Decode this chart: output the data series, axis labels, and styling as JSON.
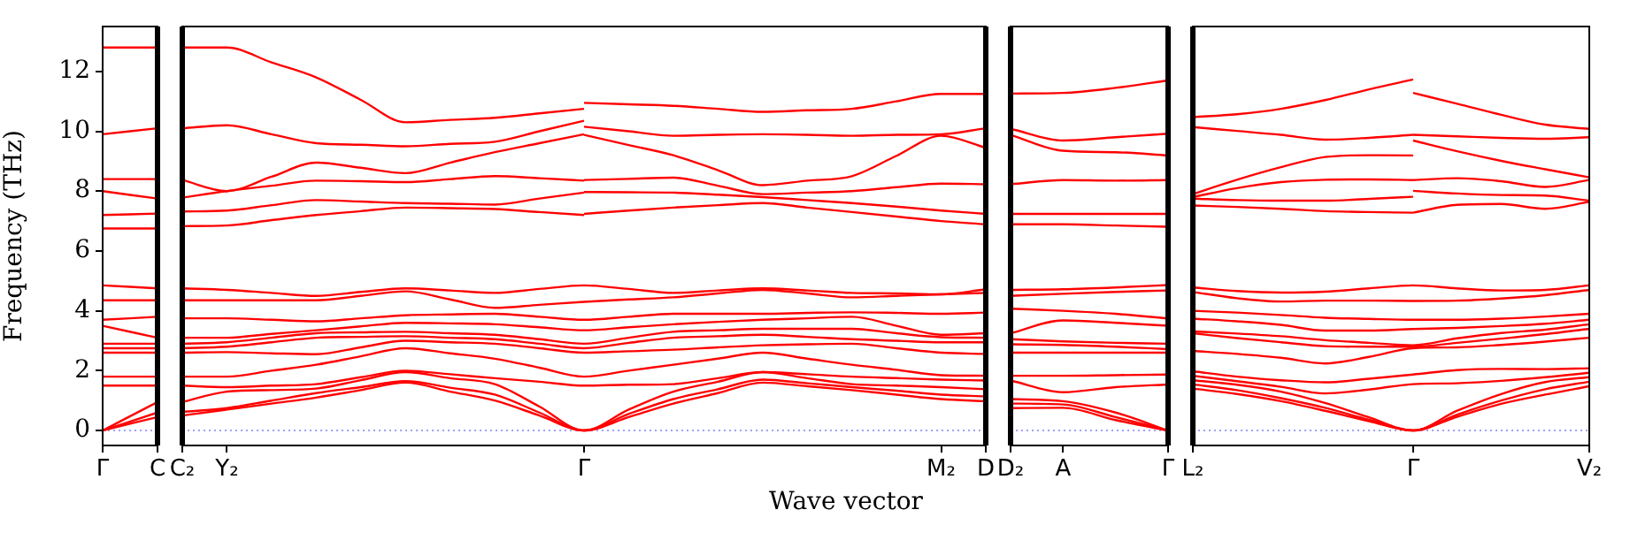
{
  "chart_data": [
    {
      "type": "line",
      "ylabel": "Frequency (THz)",
      "color": "#ff0000",
      "ylim": [
        -0.5,
        13.5
      ],
      "yticks": [
        0,
        2,
        4,
        6,
        8,
        10,
        12
      ],
      "categories": [
        "Γ",
        "C"
      ],
      "ref_lines": [
        {
          "axis": "y",
          "value": 0,
          "color": "#8080ff",
          "line_style": "dotted"
        }
      ],
      "series": [
        {
          "values": [
            12.8,
            12.8
          ]
        },
        {
          "values": [
            9.9,
            10.1
          ]
        },
        {
          "values": [
            8.4,
            8.4
          ]
        },
        {
          "values": [
            8.0,
            7.75
          ]
        },
        {
          "values": [
            7.2,
            7.25
          ]
        },
        {
          "values": [
            6.75,
            6.75
          ]
        },
        {
          "values": [
            4.85,
            4.75
          ]
        },
        {
          "values": [
            4.35,
            4.35
          ]
        },
        {
          "values": [
            3.7,
            3.8
          ]
        },
        {
          "values": [
            3.5,
            3.1
          ]
        },
        {
          "values": [
            2.9,
            2.9
          ]
        },
        {
          "values": [
            2.75,
            2.75
          ]
        },
        {
          "values": [
            2.6,
            2.6
          ]
        },
        {
          "values": [
            1.8,
            1.8
          ]
        },
        {
          "values": [
            1.5,
            1.5
          ]
        },
        {
          "values": [
            0,
            0.95
          ]
        },
        {
          "values": [
            0,
            0.6
          ]
        },
        {
          "values": [
            0,
            0.45
          ]
        }
      ]
    },
    {
      "type": "line",
      "xlabel": "Wave vector",
      "color": "#ff0000",
      "tick_labels": "x",
      "ylim": [
        -0.5,
        13.5
      ],
      "categories": [
        "C₂",
        "Y₂",
        null,
        null,
        null,
        null,
        null,
        null,
        null,
        "Γ",
        null,
        null,
        null,
        null,
        null,
        null,
        null,
        "M₂",
        "D"
      ],
      "ref_lines": [
        {
          "axis": "y",
          "value": 0,
          "color": "#8080ff",
          "line_style": "dotted"
        }
      ],
      "series": [
        {
          "values": [
            12.8,
            12.8,
            12.3,
            11.8,
            11.05,
            10.3,
            10.38,
            10.45,
            10.6,
            10.75,
            null,
            null,
            null,
            null,
            null,
            null,
            null,
            null,
            null
          ]
        },
        {
          "values": [
            10.1,
            10.2,
            9.9,
            9.6,
            9.55,
            9.5,
            9.58,
            9.65,
            10.0,
            10.35,
            null,
            null,
            null,
            null,
            null,
            null,
            null,
            null,
            null
          ]
        },
        {
          "values": [
            8.37,
            8.0,
            8.48,
            8.95,
            8.78,
            8.6,
            8.95,
            9.3,
            9.6,
            9.9,
            null,
            null,
            null,
            null,
            null,
            null,
            null,
            null,
            null
          ]
        },
        {
          "values": [
            7.78,
            8.0,
            8.18,
            8.35,
            8.33,
            8.3,
            8.4,
            8.5,
            8.43,
            8.35,
            null,
            null,
            null,
            null,
            null,
            null,
            null,
            null,
            null
          ]
        },
        {
          "values": [
            7.32,
            7.35,
            7.53,
            7.7,
            7.65,
            7.6,
            7.58,
            7.55,
            7.75,
            7.95,
            null,
            null,
            null,
            null,
            null,
            null,
            null,
            null,
            null
          ]
        },
        {
          "values": [
            6.83,
            6.85,
            7.03,
            7.2,
            7.33,
            7.45,
            7.43,
            7.4,
            7.3,
            7.2,
            null,
            null,
            null,
            null,
            null,
            null,
            null,
            null,
            null
          ]
        },
        {
          "values": [
            null,
            null,
            null,
            null,
            null,
            null,
            null,
            null,
            null,
            10.95,
            10.9,
            10.85,
            10.75,
            10.65,
            10.7,
            10.75,
            11.0,
            11.25,
            11.25
          ]
        },
        {
          "values": [
            null,
            null,
            null,
            null,
            null,
            null,
            null,
            null,
            null,
            10.15,
            10.0,
            9.85,
            9.88,
            9.9,
            9.88,
            9.85,
            9.88,
            9.9,
            10.1
          ]
        },
        {
          "values": [
            null,
            null,
            null,
            null,
            null,
            null,
            null,
            null,
            null,
            9.88,
            9.54,
            9.2,
            8.7,
            8.2,
            8.35,
            8.5,
            9.18,
            9.85,
            9.45
          ]
        },
        {
          "values": [
            null,
            null,
            null,
            null,
            null,
            null,
            null,
            null,
            null,
            8.37,
            8.41,
            8.45,
            8.18,
            7.9,
            7.95,
            8.0,
            8.13,
            8.25,
            8.23
          ]
        },
        {
          "values": [
            null,
            null,
            null,
            null,
            null,
            null,
            null,
            null,
            null,
            7.97,
            7.96,
            7.95,
            7.88,
            7.8,
            7.7,
            7.6,
            7.48,
            7.35,
            7.24
          ]
        },
        {
          "values": [
            null,
            null,
            null,
            null,
            null,
            null,
            null,
            null,
            null,
            7.24,
            7.35,
            7.45,
            7.53,
            7.6,
            7.45,
            7.3,
            7.15,
            7.0,
            6.89
          ]
        },
        {
          "values": [
            4.75,
            4.7,
            4.6,
            4.5,
            4.63,
            4.75,
            4.68,
            4.6,
            4.73,
            4.85,
            4.73,
            4.6,
            4.68,
            4.75,
            4.68,
            4.6,
            4.58,
            4.55,
            4.72
          ]
        },
        {
          "values": [
            4.35,
            4.35,
            4.35,
            4.35,
            4.5,
            4.65,
            4.38,
            4.1,
            4.2,
            4.3,
            4.38,
            4.45,
            4.58,
            4.7,
            4.58,
            4.45,
            4.5,
            4.55,
            4.6
          ]
        },
        {
          "values": [
            3.75,
            3.75,
            3.7,
            3.65,
            3.75,
            3.85,
            3.88,
            3.9,
            3.8,
            3.7,
            3.8,
            3.9,
            3.9,
            3.9,
            3.93,
            3.95,
            3.93,
            3.9,
            3.94
          ]
        },
        {
          "values": [
            3.1,
            3.1,
            3.23,
            3.35,
            3.48,
            3.6,
            3.58,
            3.55,
            3.45,
            3.35,
            3.45,
            3.55,
            3.63,
            3.7,
            3.75,
            3.8,
            3.5,
            3.2,
            3.25
          ]
        },
        {
          "values": [
            2.9,
            2.95,
            3.1,
            3.25,
            3.28,
            3.3,
            3.25,
            3.2,
            3.05,
            2.9,
            3.1,
            3.3,
            3.35,
            3.4,
            3.4,
            3.4,
            3.25,
            3.12,
            3.1
          ]
        },
        {
          "values": [
            2.75,
            2.8,
            2.95,
            3.1,
            3.13,
            3.15,
            3.1,
            3.05,
            2.9,
            2.75,
            2.93,
            3.1,
            3.15,
            3.2,
            3.13,
            3.05,
            3.0,
            2.95,
            2.95
          ]
        },
        {
          "values": [
            2.6,
            2.62,
            2.58,
            2.55,
            2.78,
            3.0,
            2.95,
            2.9,
            2.75,
            2.6,
            2.65,
            2.7,
            2.78,
            2.85,
            2.88,
            2.9,
            2.75,
            2.6,
            2.56
          ]
        },
        {
          "values": [
            1.8,
            1.8,
            2.0,
            2.2,
            2.48,
            2.75,
            2.58,
            2.4,
            2.1,
            1.8,
            2.0,
            2.2,
            2.4,
            2.6,
            2.4,
            2.2,
            2.03,
            1.85,
            1.83
          ]
        },
        {
          "values": [
            1.5,
            1.45,
            1.5,
            1.55,
            1.78,
            2.0,
            1.88,
            1.75,
            1.63,
            1.5,
            1.53,
            1.55,
            1.75,
            1.95,
            1.88,
            1.8,
            1.75,
            1.7,
            1.67
          ]
        },
        {
          "values": [
            0.95,
            1.3,
            1.35,
            1.4,
            1.68,
            1.95,
            1.75,
            1.55,
            0.8,
            0,
            0.7,
            1.3,
            1.63,
            1.95,
            1.75,
            1.55,
            1.5,
            1.45,
            1.38
          ]
        },
        {
          "values": [
            0.62,
            0.75,
            1.0,
            1.25,
            1.45,
            1.65,
            1.43,
            1.2,
            0.6,
            0,
            0.55,
            1.05,
            1.38,
            1.7,
            1.58,
            1.45,
            1.33,
            1.2,
            1.14
          ]
        },
        {
          "values": [
            0.5,
            0.7,
            0.9,
            1.1,
            1.35,
            1.6,
            1.3,
            1.0,
            0.5,
            0,
            0.45,
            0.9,
            1.25,
            1.6,
            1.48,
            1.35,
            1.2,
            1.05,
            0.98
          ]
        }
      ]
    },
    {
      "type": "line",
      "color": "#ff0000",
      "tick_labels": "x",
      "ylim": [
        -0.5,
        13.5
      ],
      "categories": [
        "D₂",
        "A",
        null,
        "Γ"
      ],
      "ref_lines": [
        {
          "axis": "y",
          "value": 0,
          "color": "#8080ff",
          "line_style": "dotted"
        }
      ],
      "series": [
        {
          "values": [
            11.26,
            11.28,
            11.45,
            11.7
          ]
        },
        {
          "values": [
            10.08,
            9.69,
            9.8,
            9.92
          ]
        },
        {
          "values": [
            9.88,
            9.35,
            9.3,
            9.19
          ]
        },
        {
          "values": [
            8.23,
            8.37,
            8.35,
            8.37
          ]
        },
        {
          "values": [
            7.24,
            7.24,
            7.24,
            7.24
          ]
        },
        {
          "values": [
            6.89,
            6.89,
            6.85,
            6.81
          ]
        },
        {
          "values": [
            4.7,
            4.72,
            4.78,
            4.86
          ]
        },
        {
          "values": [
            4.5,
            4.57,
            4.63,
            4.68
          ]
        },
        {
          "values": [
            4.07,
            4.0,
            3.9,
            3.74
          ]
        },
        {
          "values": [
            3.25,
            3.68,
            3.6,
            3.5
          ]
        },
        {
          "values": [
            3.05,
            2.98,
            2.93,
            2.9
          ]
        },
        {
          "values": [
            2.88,
            2.86,
            2.8,
            2.72
          ]
        },
        {
          "values": [
            2.6,
            2.6,
            2.6,
            2.6
          ]
        },
        {
          "values": [
            1.83,
            1.83,
            1.85,
            1.87
          ]
        },
        {
          "values": [
            1.67,
            1.28,
            1.45,
            1.54
          ]
        },
        {
          "values": [
            1.05,
            0.98,
            0.6,
            0
          ]
        },
        {
          "values": [
            0.9,
            0.87,
            0.45,
            0
          ]
        },
        {
          "values": [
            0.75,
            0.76,
            0.35,
            0
          ]
        }
      ]
    },
    {
      "type": "line",
      "color": "#ff0000",
      "tick_labels": "x",
      "ylim": [
        -0.5,
        13.5
      ],
      "categories": [
        "L₂",
        null,
        null,
        null,
        null,
        "Γ",
        null,
        null,
        null,
        "V₂"
      ],
      "ref_lines": [
        {
          "axis": "y",
          "value": 0,
          "color": "#8080ff",
          "line_style": "dotted"
        }
      ],
      "series": [
        {
          "values": [
            10.47,
            10.57,
            10.75,
            11.04,
            11.4,
            11.73,
            null,
            null,
            null,
            null
          ]
        },
        {
          "values": [
            10.14,
            10.01,
            9.88,
            9.72,
            9.78,
            9.88,
            null,
            null,
            null,
            null
          ]
        },
        {
          "values": [
            7.9,
            8.38,
            8.8,
            9.14,
            9.2,
            9.19,
            null,
            null,
            null,
            null
          ]
        },
        {
          "values": [
            7.8,
            8.1,
            8.3,
            8.38,
            8.39,
            8.37,
            null,
            null,
            null,
            null
          ]
        },
        {
          "values": [
            7.75,
            7.7,
            7.68,
            7.68,
            7.74,
            7.81,
            null,
            null,
            null,
            null
          ]
        },
        {
          "values": [
            7.52,
            7.47,
            7.41,
            7.33,
            7.3,
            7.28,
            null,
            null,
            null,
            null
          ]
        },
        {
          "values": [
            null,
            null,
            null,
            null,
            null,
            11.28,
            10.92,
            10.55,
            10.22,
            10.08
          ]
        },
        {
          "values": [
            null,
            null,
            null,
            null,
            null,
            9.88,
            9.83,
            9.78,
            9.75,
            9.8
          ]
        },
        {
          "values": [
            null,
            null,
            null,
            null,
            null,
            9.69,
            9.33,
            9.01,
            8.73,
            8.46
          ]
        },
        {
          "values": [
            null,
            null,
            null,
            null,
            null,
            8.37,
            8.43,
            8.33,
            8.14,
            8.37
          ]
        },
        {
          "values": [
            null,
            null,
            null,
            null,
            null,
            8.01,
            7.92,
            7.87,
            7.85,
            7.68
          ]
        },
        {
          "values": [
            null,
            null,
            null,
            null,
            null,
            7.28,
            7.54,
            7.57,
            7.41,
            7.64
          ]
        },
        {
          "values": [
            4.78,
            4.66,
            4.61,
            4.64,
            4.75,
            4.85,
            4.75,
            4.68,
            4.7,
            4.85
          ]
        },
        {
          "values": [
            4.63,
            4.42,
            4.31,
            4.34,
            4.34,
            4.33,
            4.34,
            4.41,
            4.52,
            4.7
          ]
        },
        {
          "values": [
            4.0,
            3.94,
            3.86,
            3.77,
            3.73,
            3.7,
            3.7,
            3.74,
            3.81,
            3.9
          ]
        },
        {
          "values": [
            3.74,
            3.65,
            3.53,
            3.34,
            3.34,
            3.39,
            3.43,
            3.49,
            3.57,
            3.7
          ]
        },
        {
          "values": [
            3.31,
            3.24,
            3.15,
            3.02,
            2.93,
            2.85,
            3.08,
            3.26,
            3.37,
            3.55
          ]
        },
        {
          "values": [
            3.25,
            3.09,
            2.95,
            2.82,
            2.8,
            2.8,
            2.93,
            3.07,
            3.22,
            3.4
          ]
        },
        {
          "values": [
            2.66,
            2.56,
            2.43,
            2.24,
            2.46,
            2.75,
            2.78,
            2.86,
            2.97,
            3.1
          ]
        },
        {
          "values": [
            1.98,
            1.8,
            1.68,
            1.61,
            1.73,
            1.87,
            2.02,
            2.06,
            2.05,
            2.08
          ]
        },
        {
          "values": [
            1.83,
            1.65,
            1.46,
            1.24,
            1.37,
            1.55,
            1.58,
            1.66,
            1.78,
            1.93
          ]
        },
        {
          "values": [
            1.68,
            1.53,
            1.3,
            0.92,
            0.44,
            0,
            0.66,
            1.22,
            1.62,
            1.78
          ]
        },
        {
          "values": [
            1.54,
            1.35,
            1.08,
            0.76,
            0.36,
            0,
            0.53,
            1.0,
            1.38,
            1.63
          ]
        },
        {
          "values": [
            1.4,
            1.22,
            0.98,
            0.66,
            0.31,
            0,
            0.46,
            0.89,
            1.2,
            1.48
          ]
        }
      ]
    }
  ]
}
